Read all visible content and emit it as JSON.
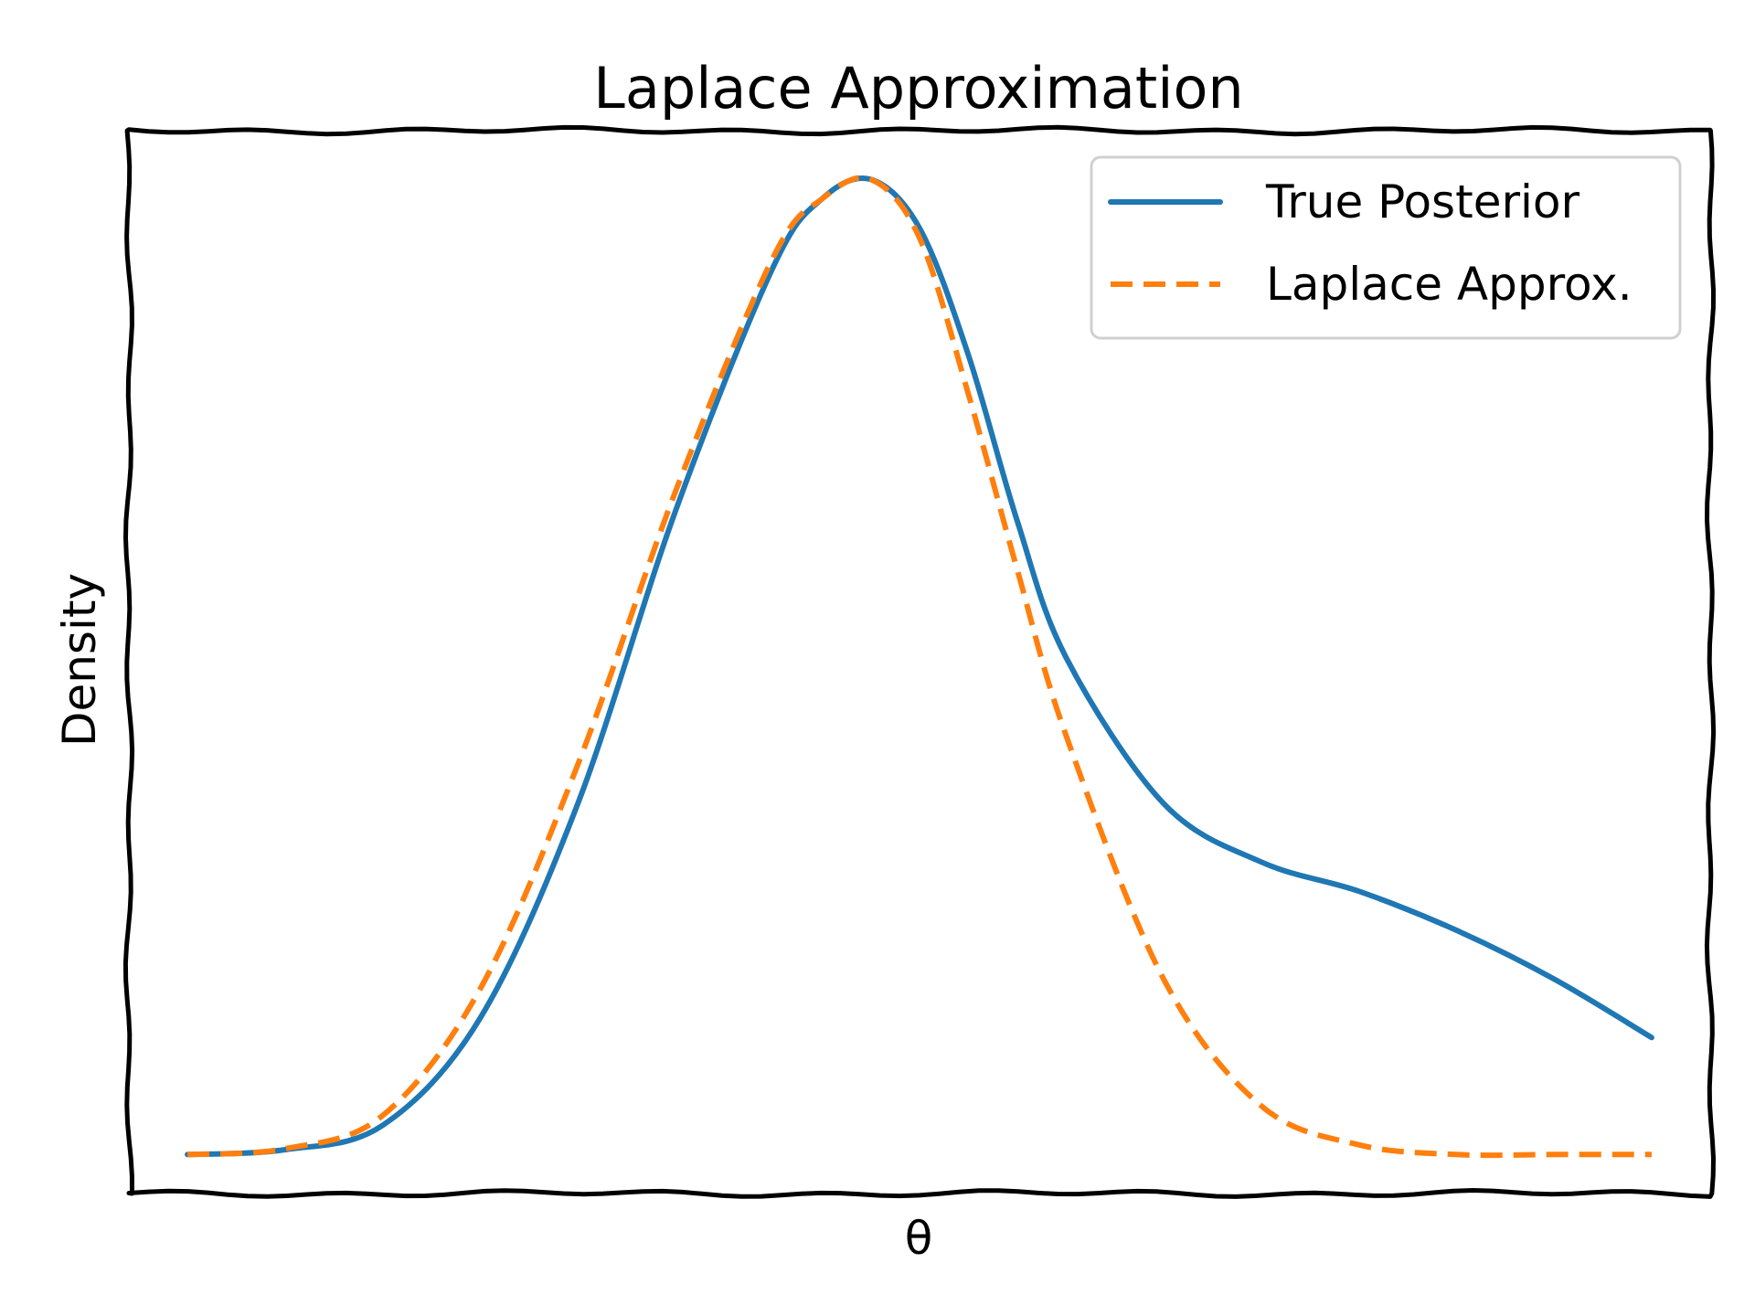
{
  "chart_data": {
    "type": "line",
    "title": "Laplace Approximation",
    "xlabel": "θ",
    "ylabel": "Density",
    "grid": false,
    "legend": {
      "position": "top-right"
    },
    "x_ticks": [],
    "y_ticks": [],
    "xlim": [
      -3.8,
      4.3
    ],
    "ylim": [
      -0.04,
      1.05
    ],
    "series": [
      {
        "name": "True Posterior",
        "color": "#1f77b4",
        "style": "solid",
        "x": [
          -3.5,
          -3.0,
          -2.5,
          -2.0,
          -1.5,
          -1.0,
          -0.5,
          -0.25,
          0.0,
          0.25,
          0.5,
          0.75,
          1.0,
          1.5,
          2.0,
          2.5,
          3.0,
          3.5,
          4.0
        ],
        "y": [
          0.0,
          0.005,
          0.03,
          0.14,
          0.36,
          0.66,
          0.91,
          0.98,
          1.0,
          0.95,
          0.82,
          0.65,
          0.51,
          0.36,
          0.3,
          0.27,
          0.23,
          0.18,
          0.12
        ]
      },
      {
        "name": "Laplace Approx.",
        "color": "#ff7f0e",
        "style": "dashed",
        "x": [
          -3.5,
          -3.0,
          -2.5,
          -2.0,
          -1.5,
          -1.0,
          -0.5,
          -0.25,
          0.0,
          0.25,
          0.5,
          0.75,
          1.0,
          1.5,
          2.0,
          2.5,
          3.0,
          3.5,
          4.0
        ],
        "y": [
          0.0,
          0.006,
          0.04,
          0.17,
          0.4,
          0.68,
          0.92,
          0.98,
          1.0,
          0.94,
          0.78,
          0.6,
          0.43,
          0.18,
          0.05,
          0.01,
          0.0,
          0.0,
          0.0
        ]
      }
    ]
  }
}
